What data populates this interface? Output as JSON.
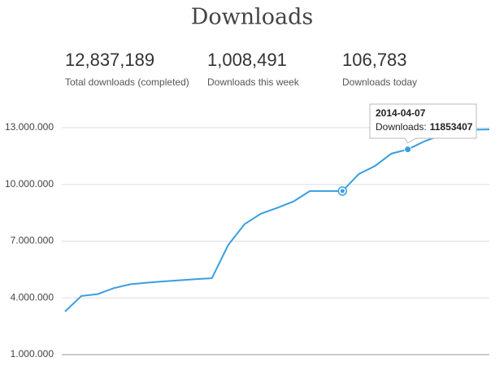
{
  "header": {
    "stats": [
      {
        "value": "12,837,189",
        "label": "Total downloads (completed)"
      },
      {
        "value": "1,008,491",
        "label": "Downloads this week"
      },
      {
        "value": "106,783",
        "label": "Downloads today"
      }
    ]
  },
  "chart_data": {
    "type": "line",
    "title": "Downloads",
    "categories": [
      null,
      null,
      null,
      null,
      null,
      null,
      null,
      null,
      null,
      null,
      null,
      null,
      null,
      null,
      null,
      null,
      null,
      null,
      null,
      null,
      null,
      "2014-04-07",
      null,
      null,
      null,
      null,
      null
    ],
    "series": [
      {
        "name": "Downloads",
        "color": "#3a9ee0",
        "values": [
          3280000,
          4100000,
          4200000,
          4520000,
          4720000,
          4800000,
          4870000,
          4930000,
          4990000,
          5040000,
          6800000,
          7900000,
          8450000,
          8760000,
          9100000,
          9650000,
          9650000,
          9650000,
          10550000,
          10980000,
          11630000,
          11853407,
          12270000,
          12590000,
          12870000,
          12900000,
          12910000
        ]
      }
    ],
    "ylim": [
      1000000,
      13000000
    ],
    "yticks": [
      {
        "value": 1000000,
        "label": "1.000.000"
      },
      {
        "value": 4000000,
        "label": "4.000.000"
      },
      {
        "value": 7000000,
        "label": "7.000.000"
      },
      {
        "value": 10000000,
        "label": "10.000.000"
      },
      {
        "value": 13000000,
        "label": "13.000.000"
      }
    ],
    "grid": true,
    "tooltip_label": "Downloads:"
  }
}
